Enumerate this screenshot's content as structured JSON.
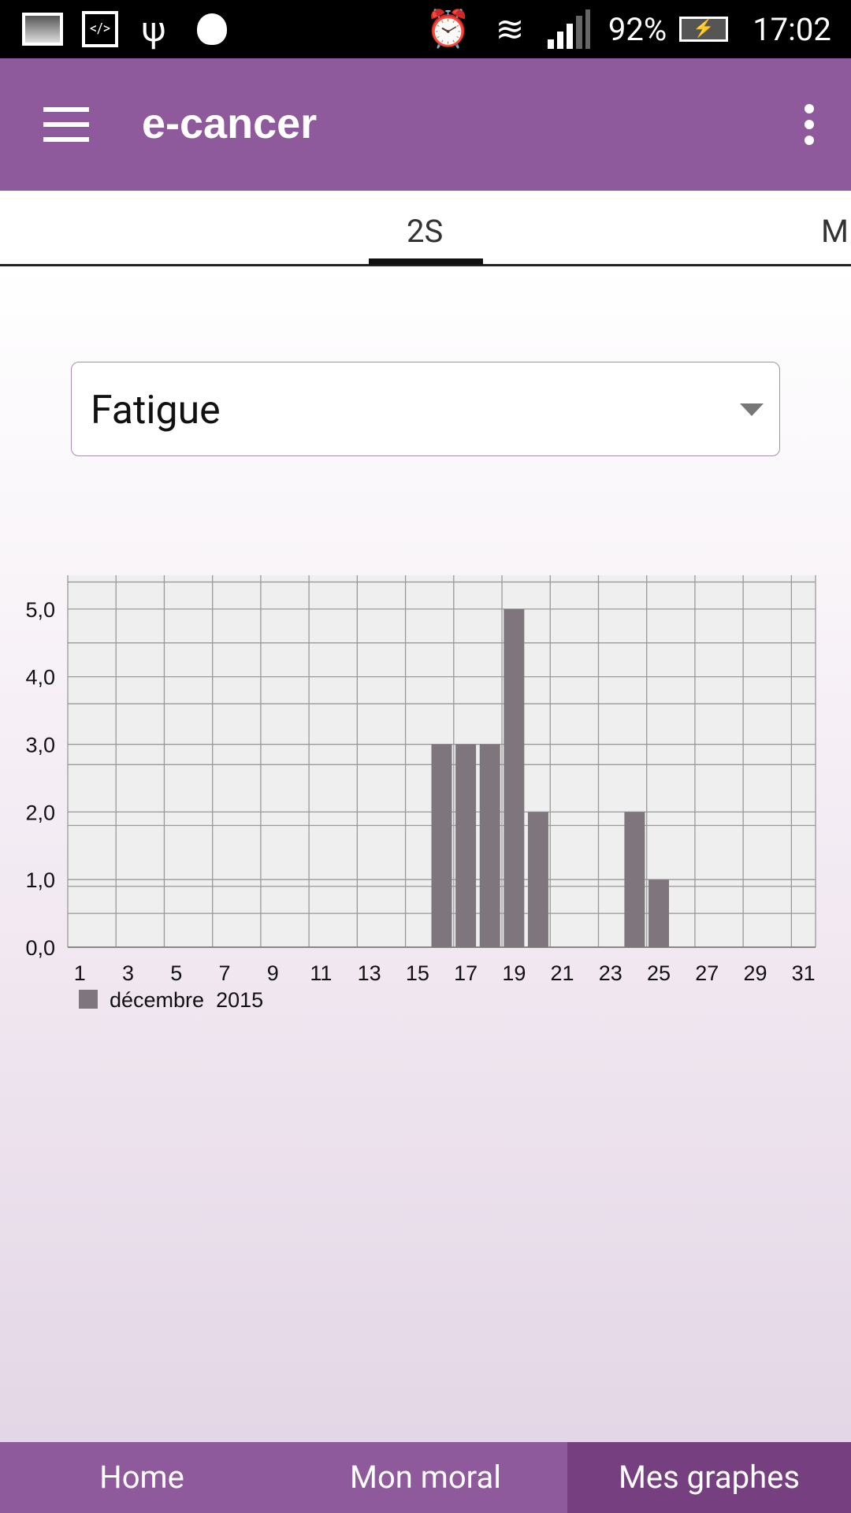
{
  "status_bar": {
    "battery": "92%",
    "time": "17:02",
    "icons": [
      "gallery-icon",
      "code-icon",
      "usb-icon",
      "android-debug-icon",
      "alarm-icon",
      "wifi-icon",
      "signal-icon",
      "battery-charging-icon"
    ]
  },
  "app_bar": {
    "title": "e-cancer",
    "menu_icon": "hamburger-icon",
    "overflow_icon": "more-vert-icon"
  },
  "tabs": {
    "items": [
      "2S",
      "M"
    ],
    "selected": "2S"
  },
  "dropdown": {
    "value": "Fatigue"
  },
  "chart_data": {
    "type": "bar",
    "x": [
      16,
      17,
      18,
      19,
      20,
      24,
      25
    ],
    "values": [
      3,
      3,
      3,
      5,
      2,
      2,
      1
    ],
    "xlim": [
      1,
      31
    ],
    "xticks": [
      "1",
      "3",
      "5",
      "7",
      "9",
      "11",
      "13",
      "15",
      "17",
      "19",
      "21",
      "23",
      "25",
      "27",
      "29",
      "31"
    ],
    "ylim": [
      0,
      5.5
    ],
    "yticks": [
      "0,0",
      "1,0",
      "2,0",
      "3,0",
      "4,0",
      "5,0"
    ],
    "grid": true,
    "legend": "bottom-left",
    "series": [
      {
        "name": "décembre  2015",
        "color": "#7e767c"
      }
    ]
  },
  "colors": {
    "primary": "#8e5a9b",
    "active_nav": "#763f80",
    "bar": "#7e767c"
  },
  "bottom_nav": {
    "items": [
      "Home",
      "Mon moral",
      "Mes graphes"
    ],
    "selected": "Mes graphes"
  }
}
